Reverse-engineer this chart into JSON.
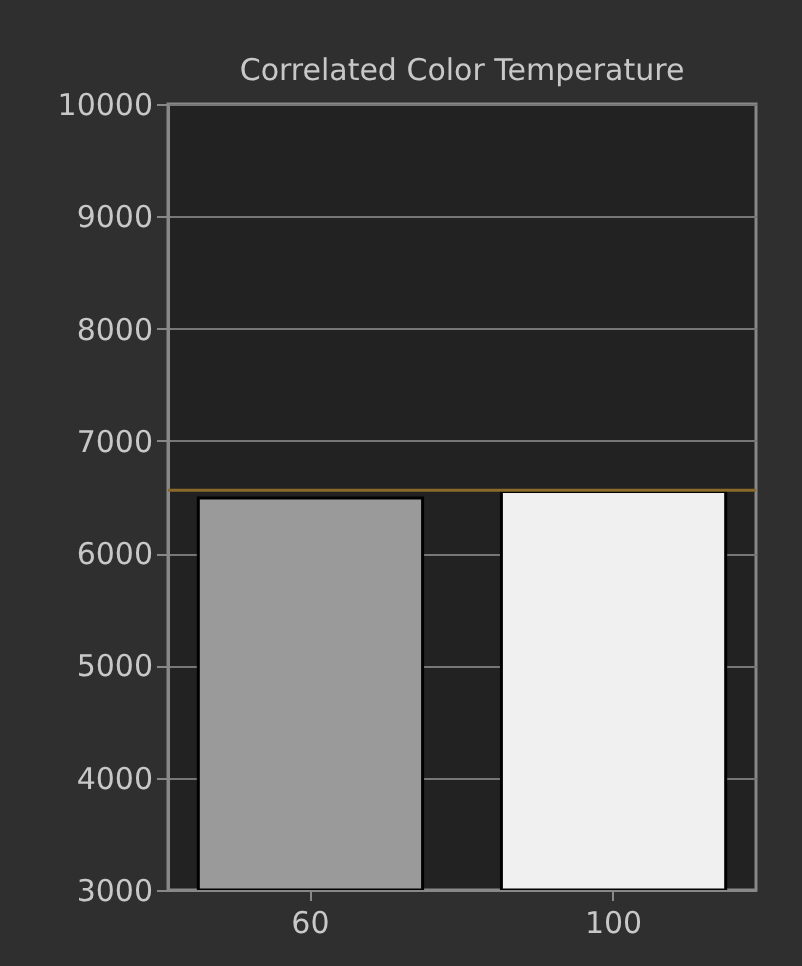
{
  "chart_data": {
    "type": "bar",
    "title": "Correlated Color Temperature",
    "categories": [
      "60",
      "100"
    ],
    "values": [
      6490,
      6550
    ],
    "colors": [
      "#9a9a9a",
      "#f0f0f0"
    ],
    "ylim": [
      3000,
      10000
    ],
    "yticks": [
      3000,
      4000,
      5000,
      6000,
      7000,
      8000,
      9000,
      10000
    ],
    "grid": "y",
    "ref_lines": [
      {
        "axis": "y",
        "value": 6560,
        "color": "#8a6a2a"
      }
    ]
  }
}
